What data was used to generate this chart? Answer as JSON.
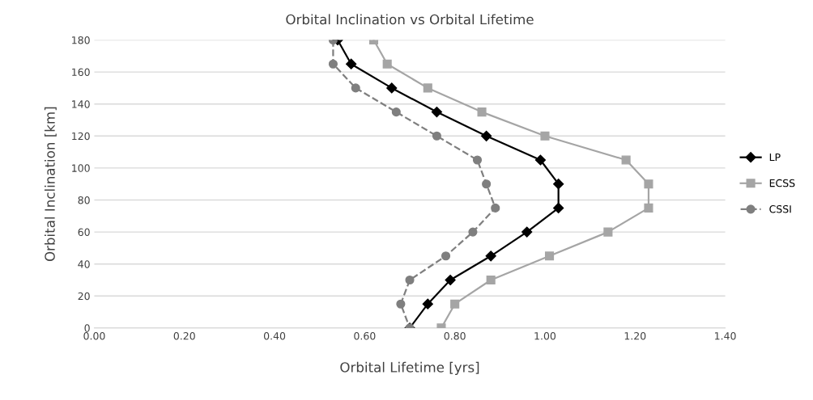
{
  "chart_data": {
    "type": "line",
    "title": "Orbital Inclination vs Orbital Lifetime",
    "xlabel": "Orbital Lifetime [yrs]",
    "ylabel": "Orbital Inclination [km]",
    "xlim": [
      0,
      1.4
    ],
    "xticks": [
      {
        "value": 0,
        "label": "0.00"
      },
      {
        "value": 0.2,
        "label": "0.20"
      },
      {
        "value": 0.4,
        "label": "0.40"
      },
      {
        "value": 0.6,
        "label": "0.60"
      },
      {
        "value": 0.8,
        "label": "0.80"
      },
      {
        "value": 1.0,
        "label": "1.00"
      },
      {
        "value": 1.2,
        "label": "1.20"
      },
      {
        "value": 1.4,
        "label": "1.40"
      }
    ],
    "ylim": [
      0,
      180
    ],
    "yticks": [
      0,
      20,
      40,
      60,
      80,
      100,
      120,
      140,
      160,
      180
    ],
    "grid": "y",
    "legend": "right",
    "series": [
      {
        "name": "LP",
        "color": "#000000",
        "marker": "diamond",
        "line_style": "solid",
        "x": [
          0.54,
          0.57,
          0.66,
          0.76,
          0.87,
          0.99,
          1.03,
          1.03,
          0.96,
          0.88,
          0.79,
          0.74,
          0.7
        ],
        "values": [
          180,
          165,
          150,
          135,
          120,
          105,
          90,
          75,
          60,
          45,
          30,
          15,
          0
        ]
      },
      {
        "name": "ECSS",
        "color": "#a5a5a5",
        "marker": "square",
        "line_style": "solid",
        "x": [
          0.62,
          0.65,
          0.74,
          0.86,
          1.0,
          1.18,
          1.23,
          1.23,
          1.14,
          1.01,
          0.88,
          0.8,
          0.77
        ],
        "values": [
          180,
          165,
          150,
          135,
          120,
          105,
          90,
          75,
          60,
          45,
          30,
          15,
          0
        ]
      },
      {
        "name": "CSSI",
        "color": "#7f7f7f",
        "marker": "circle",
        "line_style": "dashed",
        "x": [
          0.53,
          0.53,
          0.58,
          0.67,
          0.76,
          0.85,
          0.87,
          0.89,
          0.84,
          0.78,
          0.7,
          0.68,
          0.7
        ],
        "values": [
          180,
          165,
          150,
          135,
          120,
          105,
          90,
          75,
          60,
          45,
          30,
          15,
          0
        ]
      }
    ]
  }
}
